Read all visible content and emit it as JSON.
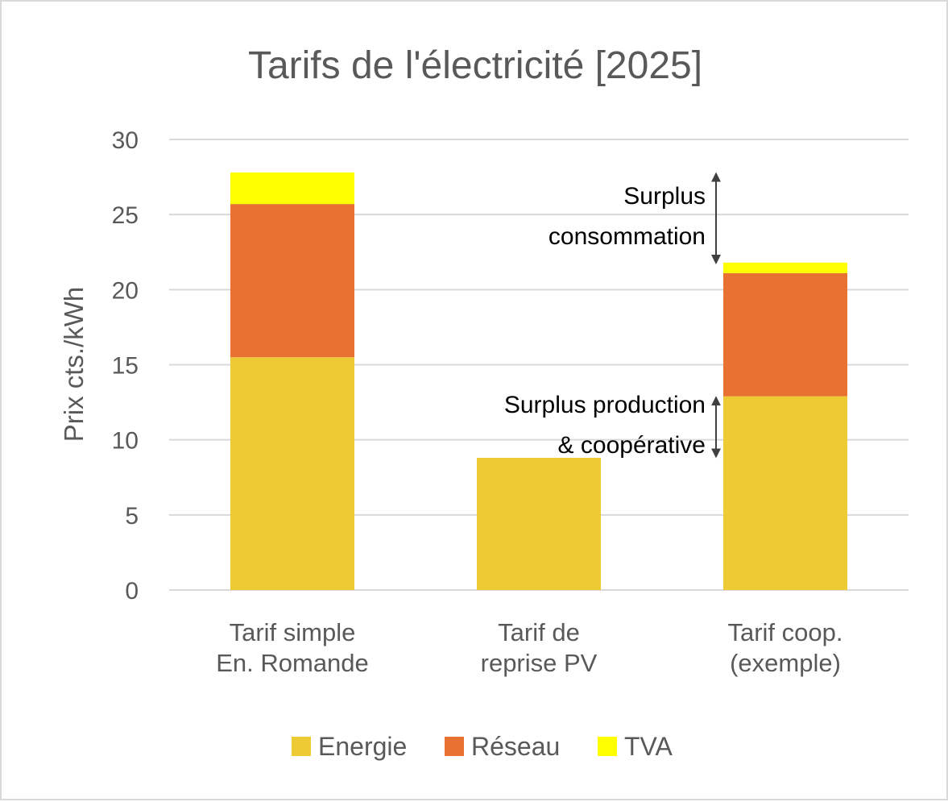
{
  "chart_data": {
    "type": "bar",
    "stacked": true,
    "title": "Tarifs de l'électricité [2025]",
    "xlabel": "",
    "ylabel": "Prix cts./kWh",
    "ylim": [
      0,
      30
    ],
    "yticks": [
      0,
      5,
      10,
      15,
      20,
      25,
      30
    ],
    "grid": true,
    "legend_position": "bottom",
    "categories": [
      [
        "Tarif simple",
        "En. Romande"
      ],
      [
        "Tarif de",
        "reprise PV"
      ],
      [
        "Tarif coop.",
        "(exemple)"
      ]
    ],
    "series": [
      {
        "name": "Energie",
        "color": "#eeca35",
        "values": [
          15.5,
          8.8,
          12.9
        ]
      },
      {
        "name": "Réseau",
        "color": "#e97132",
        "values": [
          10.2,
          0,
          8.2
        ]
      },
      {
        "name": "TVA",
        "color": "#ffff00",
        "values": [
          2.1,
          0,
          0.7
        ]
      }
    ],
    "annotations": [
      {
        "lines": [
          "Surplus",
          "consommation"
        ],
        "y_range": [
          21.7,
          27.8
        ]
      },
      {
        "lines": [
          "Surplus production",
          "& coopérative"
        ],
        "y_range": [
          8.8,
          12.9
        ]
      }
    ]
  }
}
